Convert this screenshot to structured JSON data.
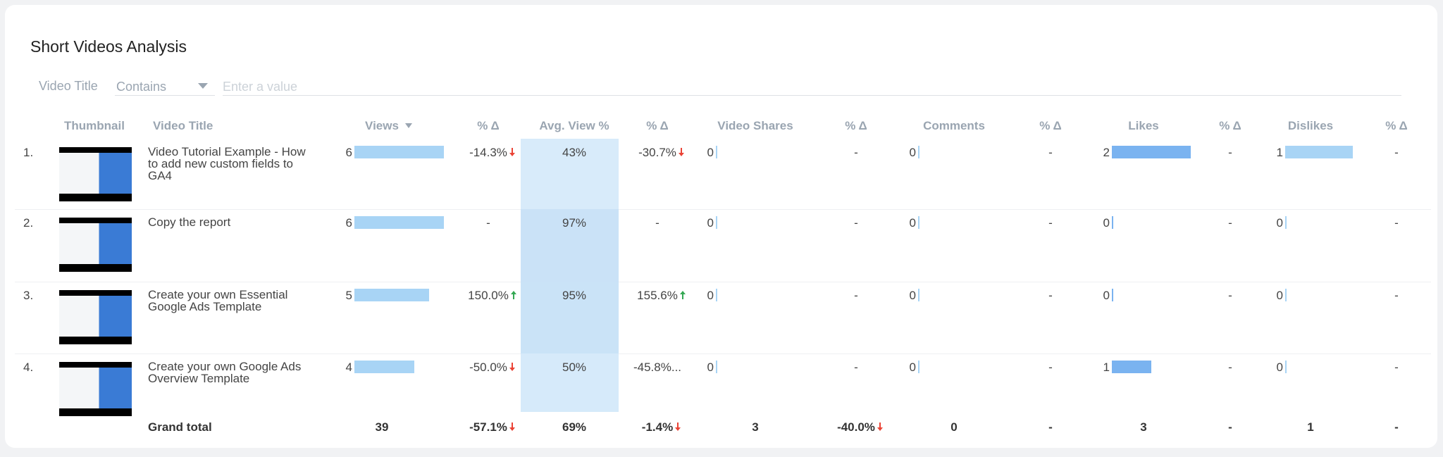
{
  "title": "Short Videos Analysis",
  "filter": {
    "label": "Video Title",
    "operator": "Contains",
    "placeholder": "Enter a value"
  },
  "table": {
    "columns": [
      "Thumbnail",
      "Video Title",
      "Views",
      "% Δ",
      "Avg. View %",
      "% Δ",
      "Video Shares",
      "% Δ",
      "Comments",
      "% Δ",
      "Likes",
      "% Δ",
      "Dislikes",
      "% Δ"
    ],
    "rows": [
      {
        "rank": "1.",
        "title": "Video Tutorial Example - How to add new custom fields to GA4",
        "cells": [
          6,
          "-14.3%",
          "43%",
          "-30.7%",
          0,
          "-",
          0,
          "-",
          2,
          "-",
          1,
          "-"
        ]
      },
      {
        "rank": "2.",
        "title": "Copy the report",
        "cells": [
          6,
          "-",
          "97%",
          "-",
          0,
          "-",
          0,
          "-",
          0,
          "-",
          0,
          "-"
        ]
      },
      {
        "rank": "3.",
        "title": "Create your own Essential Google Ads Template",
        "cells": [
          5,
          "150.0%",
          "95%",
          "155.6%",
          0,
          "-",
          0,
          "-",
          0,
          "-",
          0,
          "-"
        ]
      },
      {
        "rank": "4.",
        "title": "Create your own Google Ads Overview Template",
        "cells": [
          4,
          "-50.0%",
          "50%",
          "-45.8%...",
          0,
          "-",
          0,
          "-",
          1,
          "-",
          0,
          "-"
        ]
      }
    ],
    "total": {
      "label": "Grand total",
      "cells": [
        39,
        "-57.1%",
        "69%",
        "-1.4%",
        3,
        "-40.0%",
        0,
        "-",
        3,
        "-",
        1,
        "-"
      ]
    }
  }
}
